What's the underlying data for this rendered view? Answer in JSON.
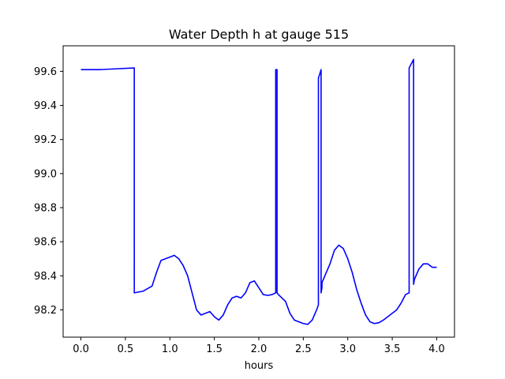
{
  "chart_data": {
    "type": "line",
    "title": "Water Depth h at gauge 515",
    "xlabel": "hours",
    "ylabel": "",
    "xlim": [
      -0.2,
      4.2
    ],
    "ylim": [
      98.04,
      99.75
    ],
    "xticks": [
      "0.0",
      "0.5",
      "1.0",
      "1.5",
      "2.0",
      "2.5",
      "3.0",
      "3.5",
      "4.0"
    ],
    "yticks": [
      "98.2",
      "98.4",
      "98.6",
      "98.8",
      "99.0",
      "99.2",
      "99.4",
      "99.6"
    ],
    "grid": false,
    "color": "#0000ff",
    "series": [
      {
        "x": [
          0.0,
          0.2,
          0.4,
          0.6,
          0.6,
          0.7,
          0.8,
          0.85,
          0.9,
          1.0,
          1.05,
          1.1,
          1.15,
          1.2,
          1.25,
          1.3,
          1.35,
          1.4,
          1.45,
          1.5,
          1.55,
          1.6,
          1.65,
          1.7,
          1.75,
          1.8,
          1.85,
          1.9,
          1.95,
          2.0,
          2.05,
          2.1,
          2.15,
          2.19,
          2.19,
          2.205,
          2.205,
          2.22,
          2.22,
          2.3,
          2.35,
          2.4,
          2.5,
          2.55,
          2.6,
          2.65,
          2.67,
          2.67,
          2.7,
          2.7,
          2.71,
          2.71,
          2.8,
          2.85,
          2.9,
          2.95,
          3.0,
          3.05,
          3.1,
          3.15,
          3.2,
          3.25,
          3.3,
          3.35,
          3.4,
          3.45,
          3.5,
          3.55,
          3.6,
          3.65,
          3.69,
          3.69,
          3.74,
          3.74,
          3.75,
          3.8,
          3.85,
          3.9,
          3.95,
          4.0
        ],
        "y": [
          99.61,
          99.61,
          99.615,
          99.62,
          98.3,
          98.31,
          98.34,
          98.42,
          98.49,
          98.51,
          98.52,
          98.5,
          98.46,
          98.4,
          98.3,
          98.2,
          98.17,
          98.18,
          98.19,
          98.16,
          98.14,
          98.17,
          98.23,
          98.27,
          98.28,
          98.27,
          98.3,
          98.36,
          98.37,
          98.33,
          98.29,
          98.285,
          98.29,
          98.3,
          99.61,
          99.61,
          98.3,
          98.29,
          98.29,
          98.25,
          98.18,
          98.14,
          98.12,
          98.115,
          98.14,
          98.2,
          98.23,
          99.56,
          99.61,
          98.3,
          98.33,
          98.36,
          98.47,
          98.55,
          98.58,
          98.56,
          98.5,
          98.42,
          98.32,
          98.24,
          98.17,
          98.13,
          98.12,
          98.125,
          98.14,
          98.16,
          98.18,
          98.2,
          98.24,
          98.29,
          98.3,
          99.62,
          99.67,
          98.35,
          98.38,
          98.44,
          98.47,
          98.47,
          98.45,
          98.45
        ]
      }
    ]
  }
}
